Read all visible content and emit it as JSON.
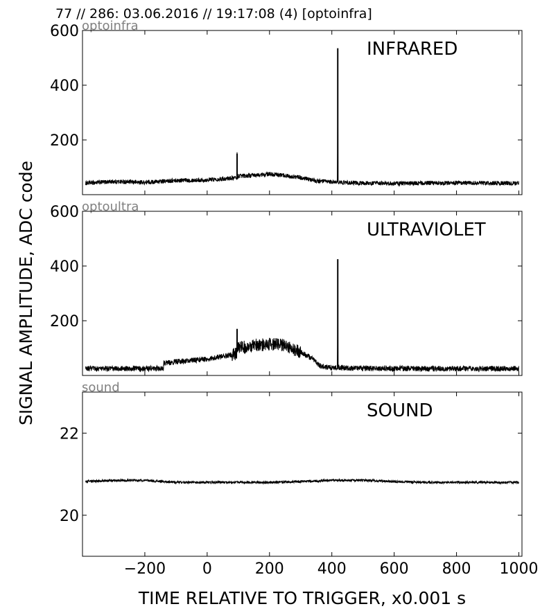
{
  "figure": {
    "header": "77 // 286:   03.06.2016 // 19:17:08 (4)  [optoinfra]",
    "ylabel": "SIGNAL AMPLITUDE,  ADC code",
    "xlabel": "TIME RELATIVE TO TRIGGER,   x0.001 s",
    "colors": {
      "trace": "#000000",
      "sublabel": "#808080",
      "axes": "#000000",
      "background": "#ffffff"
    }
  },
  "chart_data": [
    {
      "type": "line",
      "title": "INFRARED",
      "channel": "optoinfra",
      "xlim": [
        -400,
        1010
      ],
      "ylim": [
        0,
        600
      ],
      "yticks": [
        200,
        400,
        600
      ],
      "xticks": [
        -200,
        0,
        200,
        400,
        600,
        800,
        1000
      ],
      "x": [
        -390,
        -300,
        -200,
        -150,
        -100,
        0,
        50,
        95,
        96,
        97,
        100,
        150,
        200,
        250,
        300,
        350,
        400,
        418,
        419,
        420,
        425,
        450,
        500,
        600,
        700,
        800,
        900,
        1000
      ],
      "y": [
        42,
        48,
        45,
        48,
        52,
        54,
        58,
        62,
        150,
        60,
        68,
        70,
        75,
        70,
        62,
        50,
        46,
        47,
        535,
        47,
        45,
        44,
        42,
        41,
        42,
        43,
        42,
        42
      ],
      "noise": 8
    },
    {
      "type": "line",
      "title": "ULTRAVIOLET",
      "channel": "optoultra",
      "xlim": [
        -400,
        1010
      ],
      "ylim": [
        0,
        600
      ],
      "yticks": [
        200,
        400,
        600
      ],
      "xticks": [
        -200,
        0,
        200,
        400,
        600,
        800,
        1000
      ],
      "x": [
        -390,
        -200,
        -140,
        -139,
        -100,
        -50,
        0,
        50,
        90,
        95,
        96,
        97,
        100,
        150,
        200,
        250,
        300,
        340,
        360,
        400,
        418,
        419,
        420,
        425,
        450,
        500,
        600,
        700,
        800,
        900,
        1000
      ],
      "y": [
        25,
        25,
        26,
        45,
        50,
        55,
        60,
        70,
        78,
        85,
        170,
        95,
        100,
        110,
        115,
        110,
        85,
        60,
        35,
        28,
        30,
        425,
        30,
        28,
        27,
        26,
        25,
        25,
        25,
        25,
        25
      ],
      "noise": 10
    },
    {
      "type": "line",
      "title": "SOUND",
      "channel": "sound",
      "xlim": [
        -400,
        1010
      ],
      "ylim": [
        19,
        23
      ],
      "yticks": [
        20,
        22
      ],
      "xticks": [
        -200,
        0,
        200,
        400,
        600,
        800,
        1000
      ],
      "x": [
        -390,
        -300,
        -200,
        -100,
        0,
        100,
        200,
        300,
        400,
        500,
        600,
        700,
        800,
        900,
        1000
      ],
      "y": [
        20.82,
        20.85,
        20.85,
        20.8,
        20.8,
        20.8,
        20.8,
        20.82,
        20.85,
        20.85,
        20.82,
        20.8,
        20.8,
        20.8,
        20.8
      ],
      "noise": 0.03
    }
  ]
}
